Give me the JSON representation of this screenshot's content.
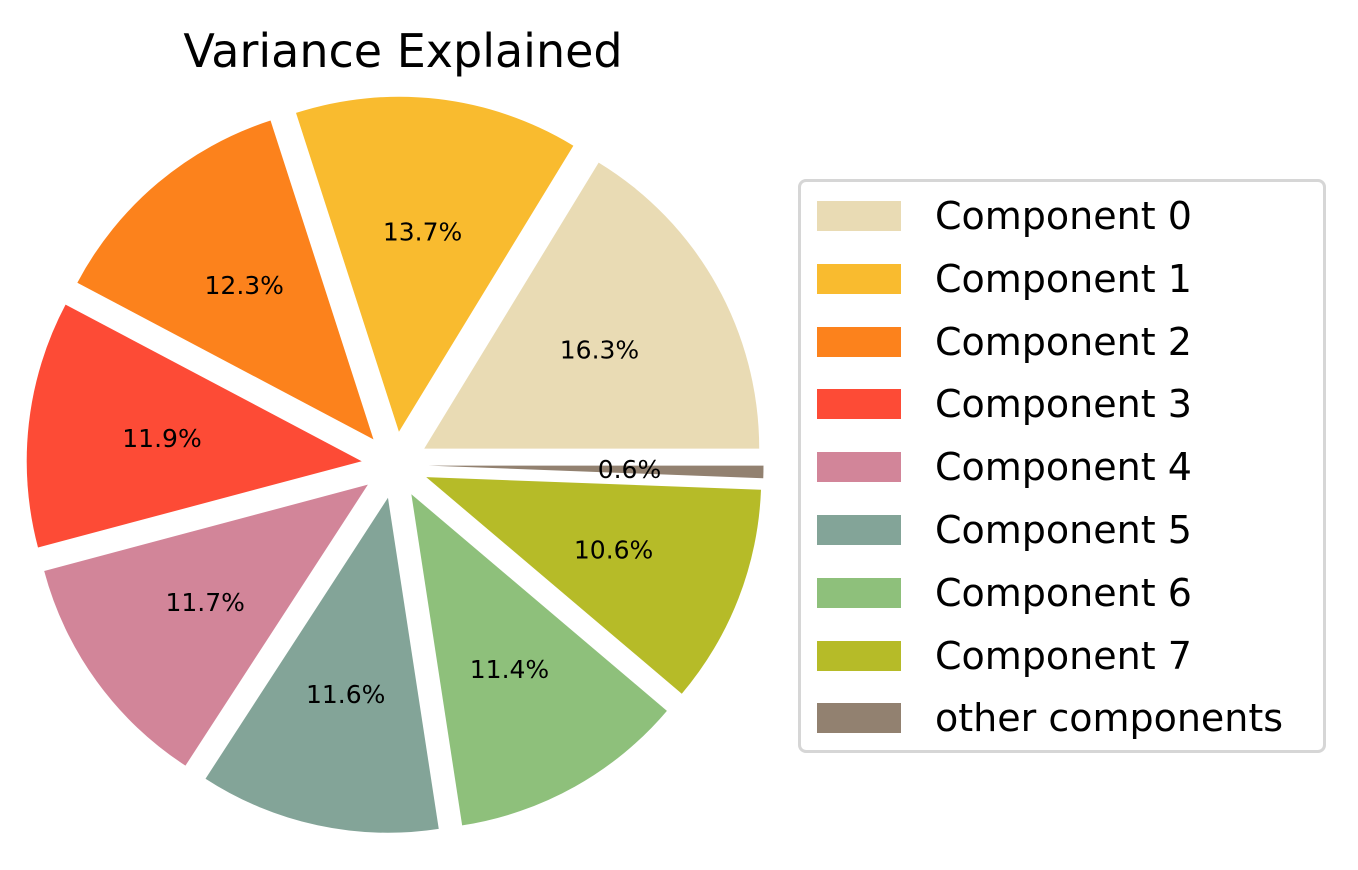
{
  "chart_data": {
    "type": "pie",
    "title": "Variance Explained",
    "slices": [
      {
        "name": "Component 0",
        "value": 16.3,
        "label": "16.3%",
        "color": "#e9dbb4"
      },
      {
        "name": "Component 1",
        "value": 13.7,
        "label": "13.7%",
        "color": "#f9bb2f"
      },
      {
        "name": "Component 2",
        "value": 12.3,
        "label": "12.3%",
        "color": "#fc821c"
      },
      {
        "name": "Component 3",
        "value": 11.9,
        "label": "11.9%",
        "color": "#fd4b36"
      },
      {
        "name": "Component 4",
        "value": 11.7,
        "label": "11.7%",
        "color": "#d28599"
      },
      {
        "name": "Component 5",
        "value": 11.6,
        "label": "11.6%",
        "color": "#83a498"
      },
      {
        "name": "Component 6",
        "value": 11.4,
        "label": "11.4%",
        "color": "#8ec07b"
      },
      {
        "name": "Component 7",
        "value": 10.6,
        "label": "10.6%",
        "color": "#b6bb28"
      },
      {
        "name": "other components",
        "value": 0.6,
        "label": "0.6%",
        "color": "#928170"
      }
    ],
    "legend": "right"
  }
}
